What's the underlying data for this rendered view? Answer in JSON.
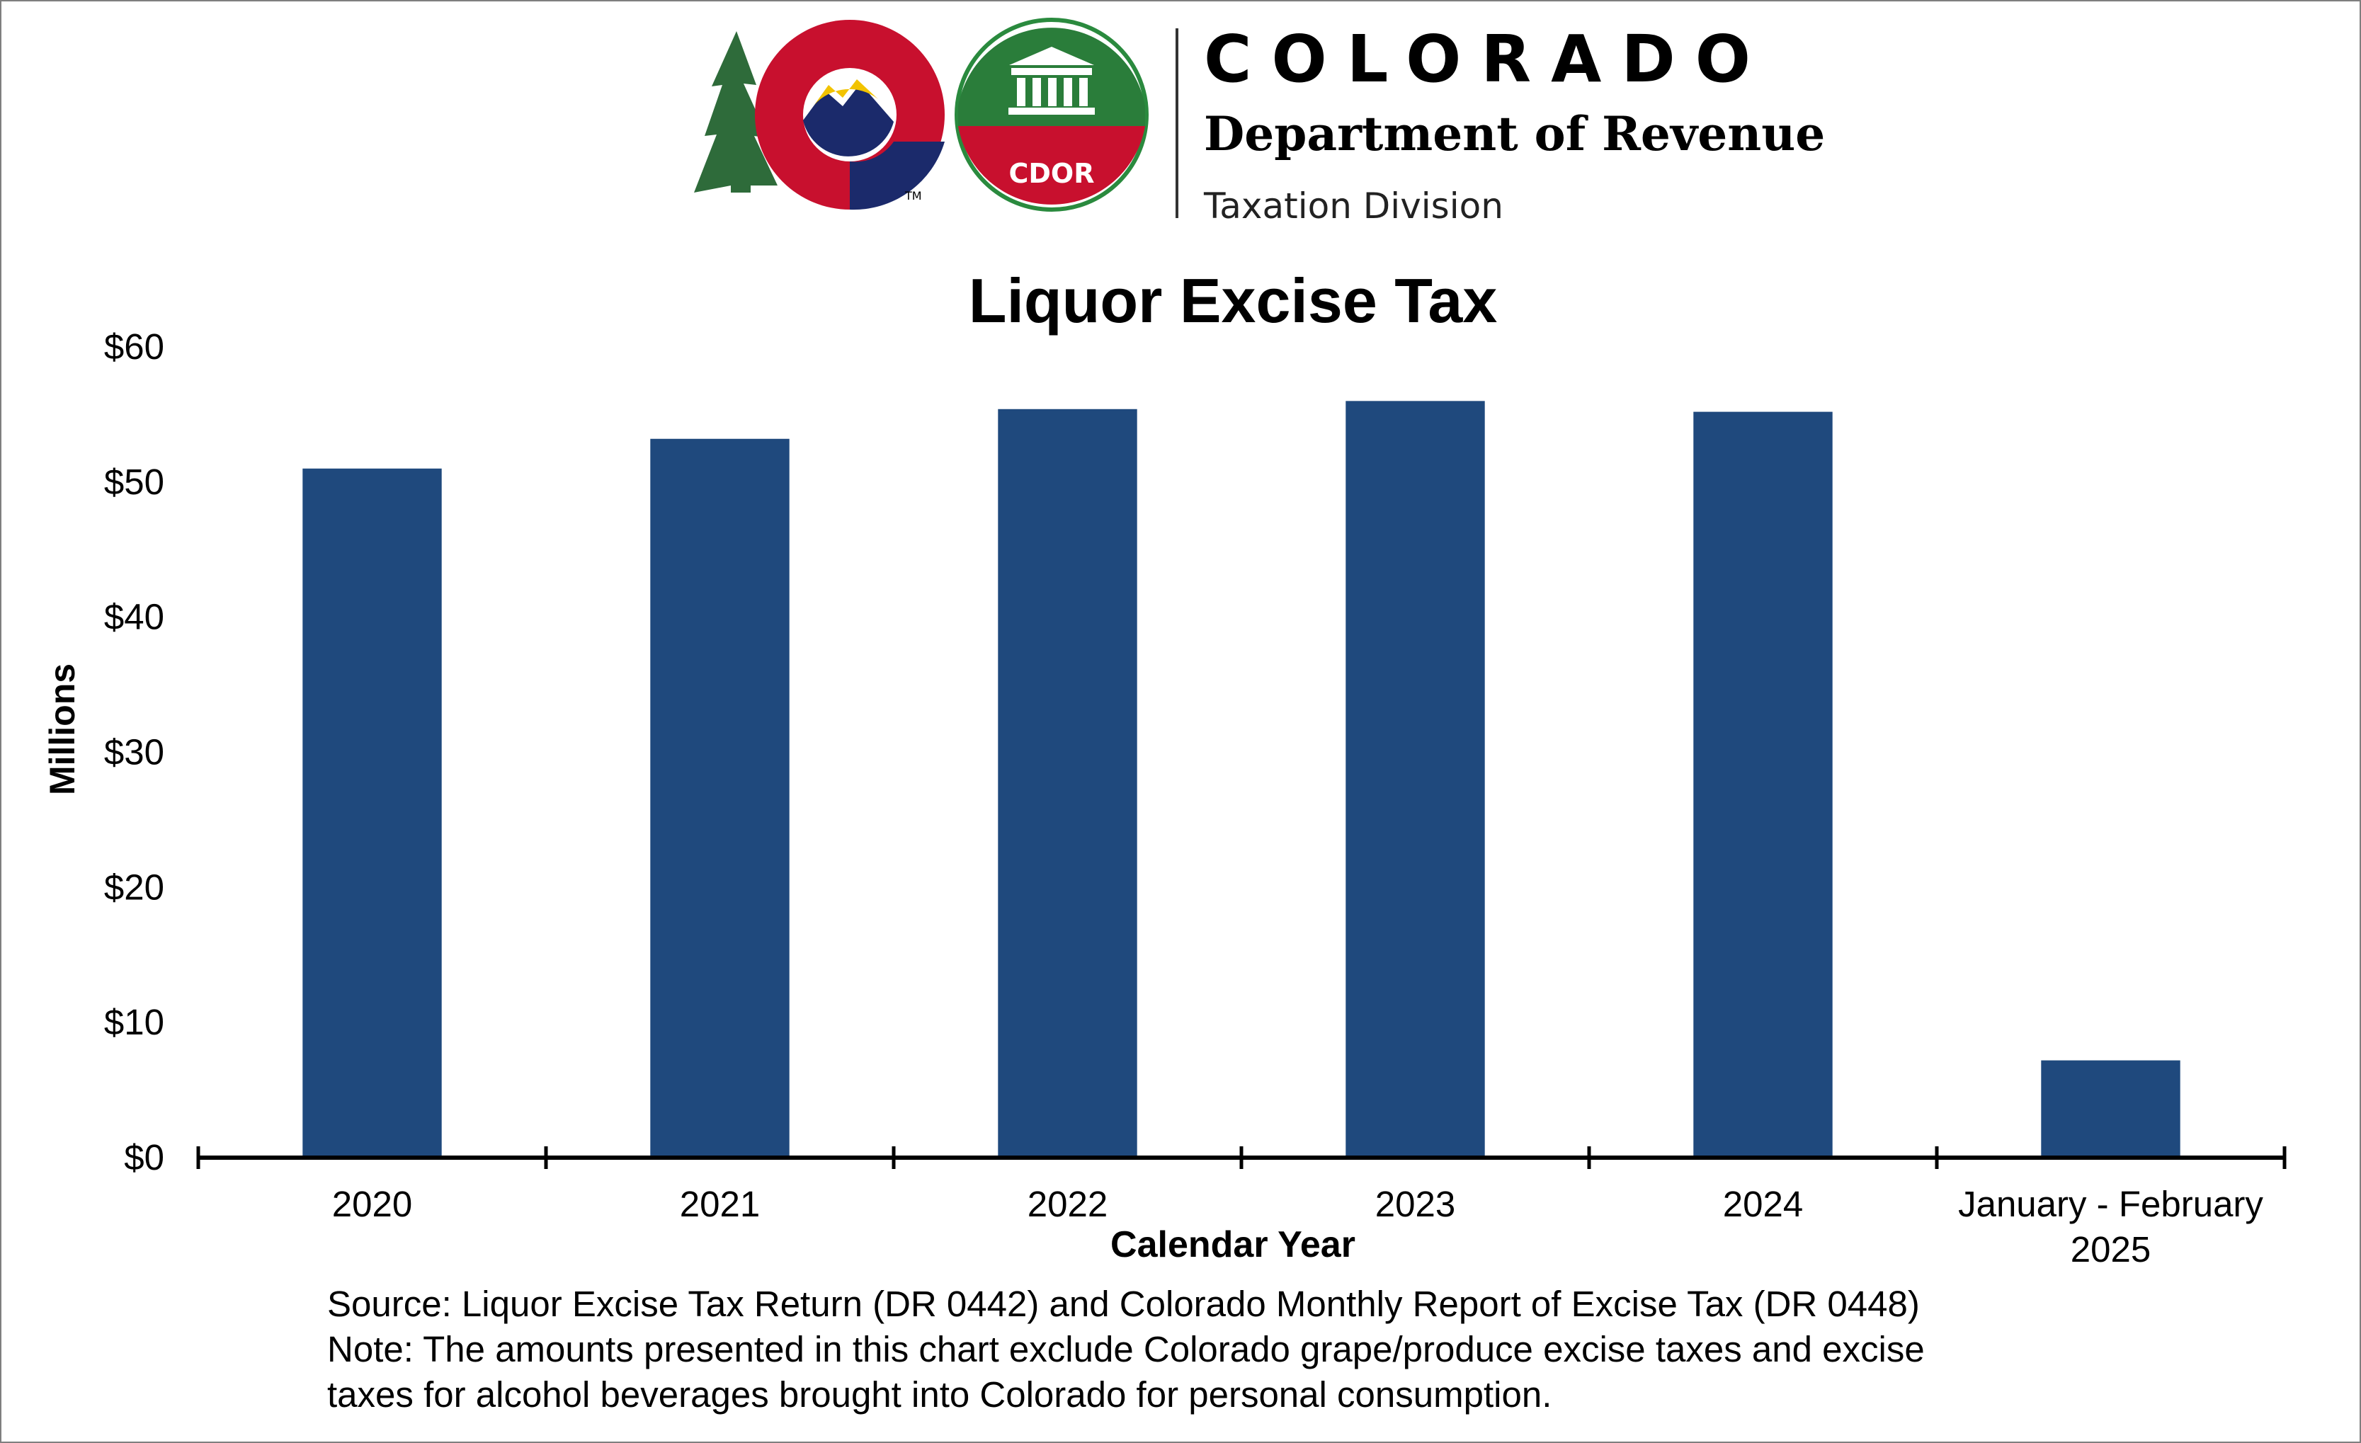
{
  "logo": {
    "line1": "COLORADO",
    "line2": "Department of Revenue",
    "line3": "Taxation Division",
    "badge_text": "CDOR",
    "trademark": "TM"
  },
  "chart_data": {
    "type": "bar",
    "title": "Liquor Excise Tax",
    "xlabel": "Calendar Year",
    "ylabel": "Millions",
    "categories": [
      "2020",
      "2021",
      "2022",
      "2023",
      "2024",
      "January - February 2025"
    ],
    "values": [
      51,
      53.2,
      55.4,
      56,
      55.2,
      7.2
    ],
    "ylim": [
      0,
      60
    ],
    "yticks": [
      0,
      10,
      20,
      30,
      40,
      50,
      60
    ],
    "ytick_labels": [
      "$0",
      "$10",
      "$20",
      "$30",
      "$40",
      "$50",
      "$60"
    ],
    "bar_color": "#1f497d",
    "grid": false,
    "legend": "none"
  },
  "footer": {
    "source": "Source: Liquor Excise Tax Return (DR 0442) and Colorado Monthly Report of Excise Tax (DR 0448)",
    "note_line1": "Note: The amounts presented in this chart exclude Colorado grape/produce excise taxes and excise",
    "note_line2": "taxes for alcohol beverages brought into Colorado for personal consumption."
  }
}
